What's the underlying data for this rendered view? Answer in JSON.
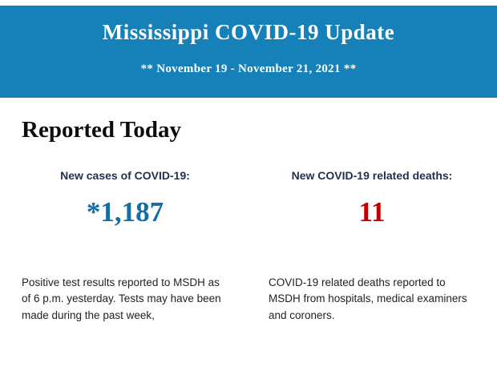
{
  "header": {
    "title": "Mississippi COVID-19 Update",
    "subtitle": "** November 19 - November 21, 2021 **",
    "background_color": "#1681b8",
    "text_color": "#ffffff"
  },
  "main": {
    "section_title": "Reported Today",
    "stats": [
      {
        "label": "New cases of COVID-19:",
        "value": "*1,187",
        "value_color": "#166da4",
        "description": "Positive test results reported to MSDH as of 6 p.m. yesterday. Tests may have been made during the past week,"
      },
      {
        "label": "New COVID-19 related deaths:",
        "value": "11",
        "value_color": "#c00000",
        "description": "COVID-19 related deaths reported to MSDH from hospitals, medical examiners and coroners."
      }
    ]
  }
}
